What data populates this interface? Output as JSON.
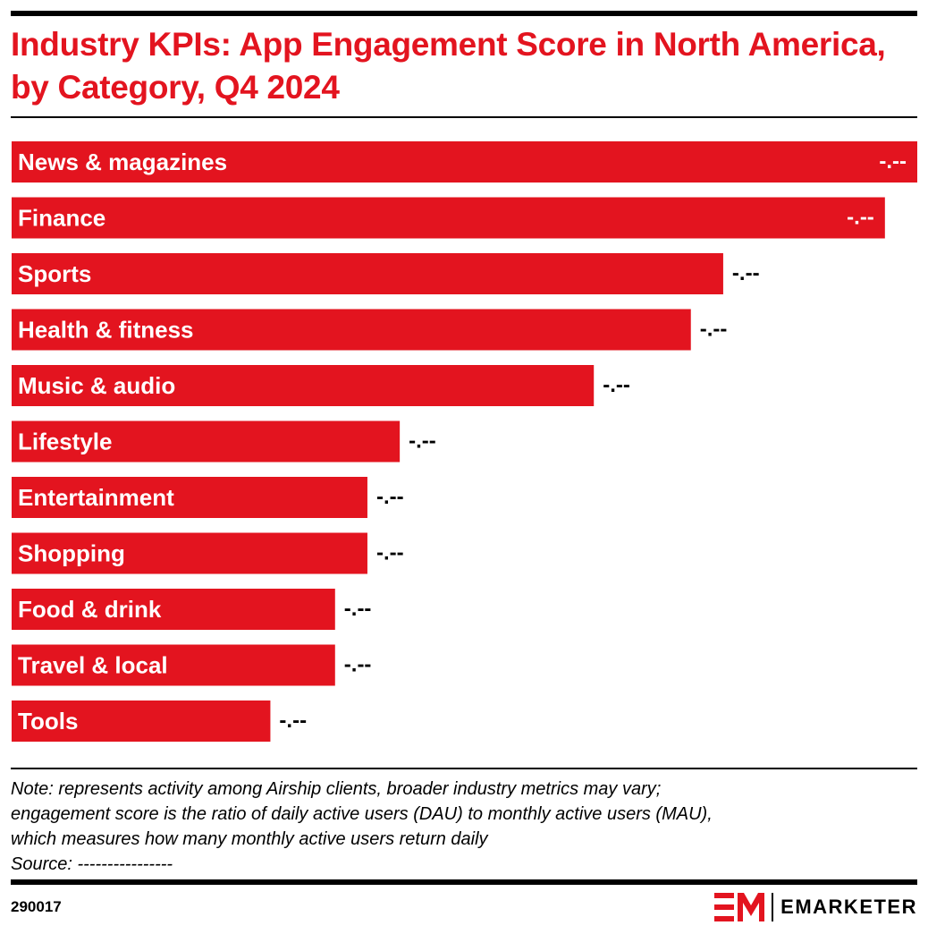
{
  "title": "Industry KPIs: App Engagement Score in North America, by Category, Q4 2024",
  "note": {
    "lines": [
      "Note: represents activity among Airship clients, broader industry metrics may vary;",
      "engagement score is the ratio of daily active users (DAU) to monthly active users (MAU),",
      "which measures how many monthly active users return daily"
    ],
    "source": "Source: ----------------"
  },
  "footer": {
    "chart_id": "290017",
    "brand": "EMARKETER"
  },
  "colors": {
    "bar": "#e3141f",
    "title": "#e3141f",
    "text": "#000000"
  },
  "chart_data": {
    "type": "bar",
    "orientation": "horizontal",
    "title": "Industry KPIs: App Engagement Score in North America, by Category, Q4 2024",
    "categories": [
      "News & magazines",
      "Finance",
      "Sports",
      "Health & fitness",
      "Music & audio",
      "Lifestyle",
      "Entertainment",
      "Shopping",
      "Food & drink",
      "Travel & local",
      "Tools"
    ],
    "values": [
      0.28,
      0.27,
      0.22,
      0.21,
      0.18,
      0.12,
      0.11,
      0.11,
      0.1,
      0.1,
      0.08
    ],
    "value_labels": [
      "-.--",
      "-.--",
      "-.--",
      "-.--",
      "-.--",
      "-.--",
      "-.--",
      "-.--",
      "-.--",
      "-.--",
      "-.--"
    ],
    "xlim": [
      0,
      0.28
    ],
    "grid": false,
    "legend": "none"
  }
}
